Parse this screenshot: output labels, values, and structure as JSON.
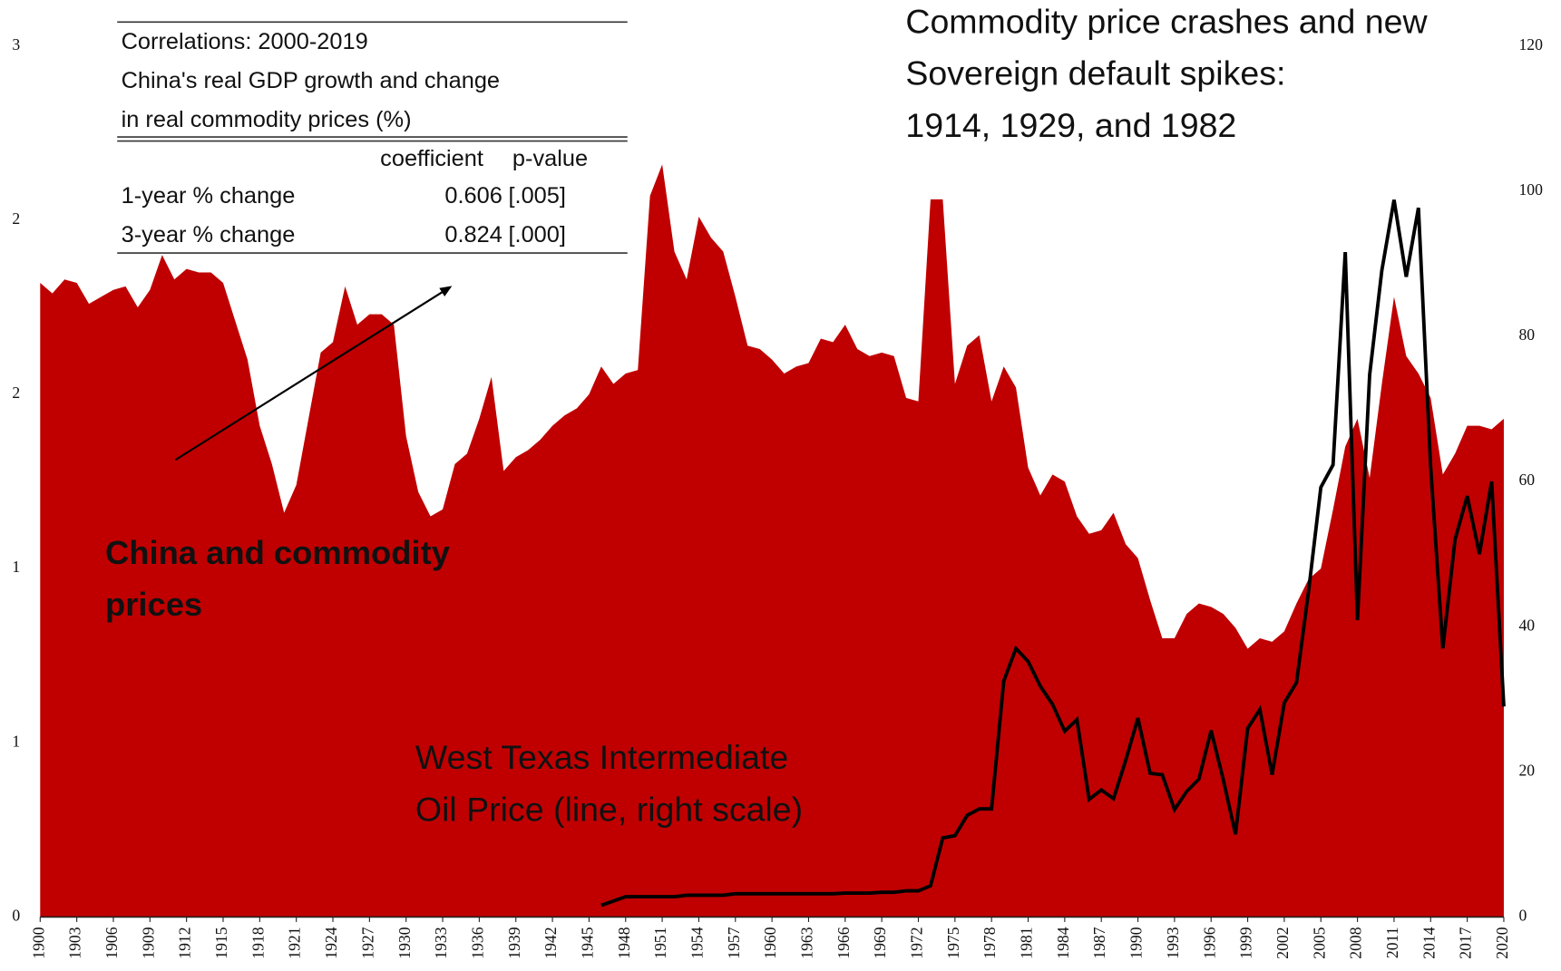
{
  "chart_data": {
    "type": "area",
    "title": [
      "Commodity price crashes and new",
      "Sovereign default spikes:",
      "1914, 1929, and  1982"
    ],
    "annotations": {
      "china_label": [
        "China  and commodity",
        "prices"
      ],
      "oil_label": [
        "West Texas Intermediate",
        "Oil Price (line, right scale)"
      ]
    },
    "table": {
      "title_lines": [
        "Correlations: 2000-2019",
        "China's real GDP growth and change",
        "in real commodity prices (%)"
      ],
      "header": [
        "coefficient",
        "p-value"
      ],
      "rows": [
        [
          "1-year % change",
          "0.606",
          "[.005]"
        ],
        [
          "3-year % change",
          "0.824",
          "[.000]"
        ]
      ]
    },
    "x": [
      1900,
      1901,
      1902,
      1903,
      1904,
      1905,
      1906,
      1907,
      1908,
      1909,
      1910,
      1911,
      1912,
      1913,
      1914,
      1915,
      1916,
      1917,
      1918,
      1919,
      1920,
      1921,
      1922,
      1923,
      1924,
      1925,
      1926,
      1927,
      1928,
      1929,
      1930,
      1931,
      1932,
      1933,
      1934,
      1935,
      1936,
      1937,
      1938,
      1939,
      1940,
      1941,
      1942,
      1943,
      1944,
      1945,
      1946,
      1947,
      1948,
      1949,
      1950,
      1951,
      1952,
      1953,
      1954,
      1955,
      1956,
      1957,
      1958,
      1959,
      1960,
      1961,
      1962,
      1963,
      1964,
      1965,
      1966,
      1967,
      1968,
      1969,
      1970,
      1971,
      1972,
      1973,
      1974,
      1975,
      1976,
      1977,
      1978,
      1979,
      1980,
      1981,
      1982,
      1983,
      1984,
      1985,
      1986,
      1987,
      1988,
      1989,
      1990,
      1991,
      1992,
      1993,
      1994,
      1995,
      1996,
      1997,
      1998,
      1999,
      2000,
      2001,
      2002,
      2003,
      2004,
      2005,
      2006,
      2007,
      2008,
      2009,
      2010,
      2011,
      2012,
      2013,
      2014,
      2015,
      2016,
      2017,
      2018,
      2019,
      2020
    ],
    "xlim": [
      1900,
      2020
    ],
    "xticks": [
      1900,
      1903,
      1906,
      1909,
      1912,
      1915,
      1918,
      1921,
      1924,
      1927,
      1930,
      1933,
      1936,
      1939,
      1942,
      1945,
      1948,
      1951,
      1954,
      1957,
      1960,
      1963,
      1966,
      1969,
      1972,
      1975,
      1978,
      1981,
      1984,
      1987,
      1990,
      1993,
      1996,
      1999,
      2002,
      2005,
      2008,
      2011,
      2014,
      2017,
      2020
    ],
    "ylim": [
      0,
      2.5
    ],
    "yticks": [
      0,
      {
        "value": 0.5,
        "label": "1"
      },
      1,
      {
        "value": 1.5,
        "label": "2"
      },
      2,
      {
        "value": 2.5,
        "label": "3"
      }
    ],
    "y2lim": [
      0,
      120
    ],
    "y2ticks": [
      0,
      20,
      40,
      60,
      80,
      100,
      120
    ],
    "series": [
      {
        "color": "#c00000",
        "values": [
          1.82,
          1.79,
          1.83,
          1.82,
          1.76,
          1.78,
          1.8,
          1.81,
          1.75,
          1.8,
          1.9,
          1.83,
          1.86,
          1.85,
          1.85,
          1.82,
          1.71,
          1.6,
          1.41,
          1.3,
          1.16,
          1.24,
          1.43,
          1.62,
          1.65,
          1.81,
          1.7,
          1.73,
          1.73,
          1.7,
          1.38,
          1.22,
          1.15,
          1.17,
          1.3,
          1.33,
          1.43,
          1.55,
          1.28,
          1.32,
          1.34,
          1.37,
          1.41,
          1.44,
          1.46,
          1.5,
          1.58,
          1.53,
          1.56,
          1.57,
          2.07,
          2.16,
          1.91,
          1.83,
          2.01,
          1.95,
          1.91,
          1.78,
          1.64,
          1.63,
          1.6,
          1.56,
          1.58,
          1.59,
          1.66,
          1.65,
          1.7,
          1.63,
          1.61,
          1.62,
          1.61,
          1.49,
          1.48,
          2.06,
          2.06,
          1.53,
          1.64,
          1.67,
          1.48,
          1.58,
          1.52,
          1.29,
          1.21,
          1.27,
          1.25,
          1.15,
          1.1,
          1.11,
          1.16,
          1.07,
          1.03,
          0.91,
          0.8,
          0.8,
          0.87,
          0.9,
          0.89,
          0.87,
          0.83,
          0.77,
          0.8,
          0.79,
          0.82,
          0.9,
          0.97,
          1.0,
          1.17,
          1.35,
          1.43,
          1.26,
          1.53,
          1.78,
          1.61,
          1.56,
          1.49,
          1.27,
          1.33,
          1.41,
          1.41,
          1.4,
          1.43
        ]
      },
      {
        "color": "#000000",
        "axis": "y2",
        "values": [
          null,
          null,
          null,
          null,
          null,
          null,
          null,
          null,
          null,
          null,
          null,
          null,
          null,
          null,
          null,
          null,
          null,
          null,
          null,
          null,
          null,
          null,
          null,
          null,
          null,
          null,
          null,
          null,
          null,
          null,
          null,
          null,
          null,
          null,
          null,
          null,
          null,
          null,
          null,
          null,
          null,
          null,
          null,
          null,
          null,
          null,
          1.6,
          2.2,
          2.8,
          2.8,
          2.8,
          2.8,
          2.8,
          3.0,
          3.0,
          3.0,
          3.0,
          3.2,
          3.2,
          3.2,
          3.2,
          3.2,
          3.2,
          3.2,
          3.2,
          3.2,
          3.3,
          3.3,
          3.3,
          3.4,
          3.4,
          3.6,
          3.6,
          4.3,
          10.9,
          11.2,
          14.0,
          14.9,
          14.9,
          32.5,
          37.0,
          35.2,
          31.8,
          29.3,
          25.6,
          27.2,
          16.2,
          17.5,
          16.3,
          21.6,
          27.4,
          19.8,
          19.6,
          14.8,
          17.3,
          19.0,
          25.7,
          18.9,
          11.4,
          26.0,
          28.6,
          19.6,
          29.5,
          32.3,
          45.0,
          59.2,
          62.3,
          91.6,
          40.9,
          74.7,
          89.1,
          98.8,
          88.2,
          97.7,
          62,
          37,
          52,
          58,
          50,
          60,
          29
        ]
      }
    ]
  }
}
